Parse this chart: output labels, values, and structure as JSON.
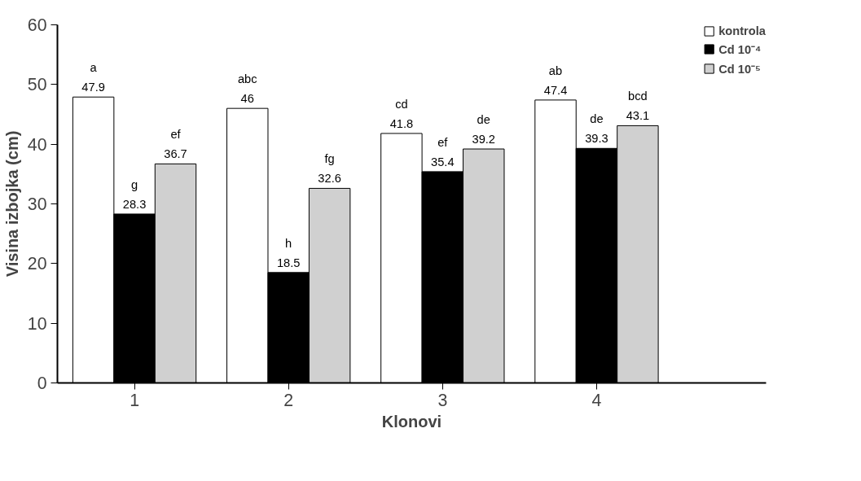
{
  "chart_data": {
    "type": "bar",
    "xlabel": "Klonovi",
    "ylabel": "Visina izbojka (cm)",
    "categories": [
      "1",
      "2",
      "3",
      "4"
    ],
    "series": [
      {
        "name": "kontrola",
        "color": "#ffffff",
        "values": [
          47.9,
          46,
          41.8,
          47.4
        ],
        "value_labels": [
          "a\n47.9",
          "abc\n46",
          "cd\n41.8",
          "ab\n47.4"
        ]
      },
      {
        "name": "Cd 10⁻⁴",
        "color": "#000000",
        "values": [
          28.3,
          18.5,
          35.4,
          39.3
        ],
        "value_labels": [
          "g\n28.3",
          "h\n18.5",
          "ef\n35.4",
          "de\n39.3"
        ]
      },
      {
        "name": "Cd 10⁻⁵",
        "color": "#d0d0d0",
        "values": [
          36.7,
          32.6,
          39.2,
          43.1
        ],
        "value_labels": [
          "ef\n36.7",
          "fg\n32.6",
          "de\n39.2",
          "bcd\n43.1"
        ]
      }
    ],
    "ylim": [
      0,
      60
    ],
    "yticks": [
      0,
      10,
      20,
      30,
      40,
      50,
      60
    ],
    "grid": false,
    "legend": "top right"
  }
}
